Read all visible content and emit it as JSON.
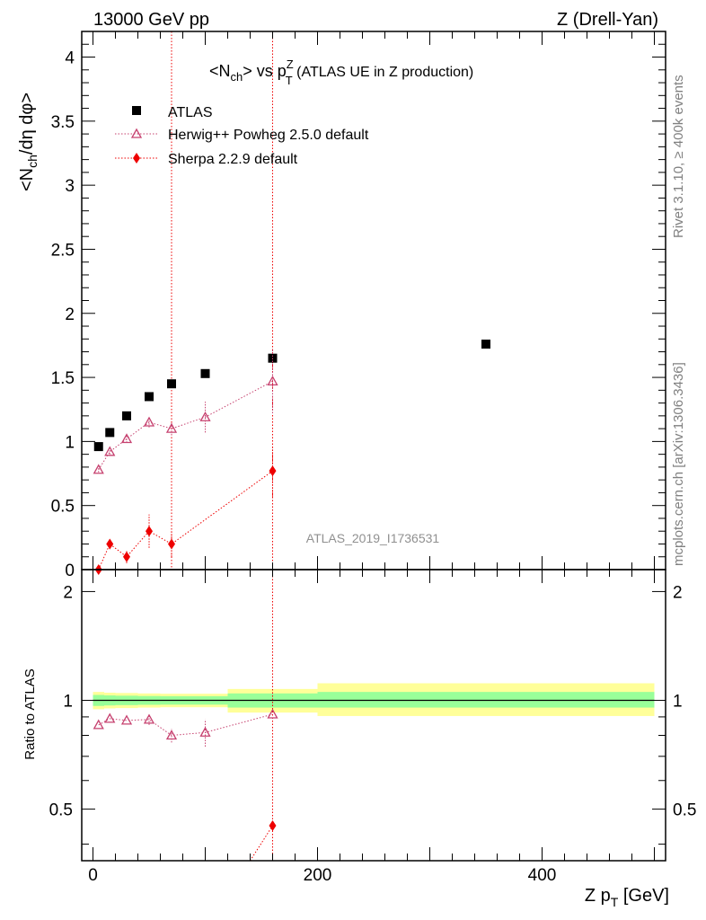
{
  "header": {
    "left": "13000 GeV pp",
    "right": "Z (Drell-Yan)"
  },
  "side_text": {
    "rivet": "Rivet 3.1.10, ≥ 400k events",
    "mcplots": "mcplots.cern.ch [arXiv:1306.3436]"
  },
  "chart_data": [
    {
      "type": "scatter",
      "title": {
        "part1": "<N",
        "part1_sub": "ch",
        "part2": "> vs p",
        "part2_sup": "Z",
        "part2_sub": "T",
        "part3": " (ATLAS UE in Z production)"
      },
      "ylabel": {
        "part1": "<N",
        "part1_sub": "ch",
        "part2": "/dη dφ>"
      },
      "watermark": "ATLAS_2019_I1736531",
      "xlim": [
        -10,
        510
      ],
      "ylim": [
        0,
        4.2
      ],
      "yticks": [
        0,
        0.5,
        1,
        1.5,
        2,
        2.5,
        3,
        3.5,
        4
      ],
      "ytick_labels": [
        "0",
        "0.5",
        "1",
        "1.5",
        "2",
        "2.5",
        "3",
        "3.5",
        "4"
      ],
      "legend_position": "top-left",
      "series": [
        {
          "name": "ATLAS",
          "marker": "square",
          "color": "#000000",
          "points": [
            {
              "x": 5,
              "y": 0.96,
              "xerr": 5
            },
            {
              "x": 15,
              "y": 1.07,
              "xerr": 5
            },
            {
              "x": 30,
              "y": 1.2,
              "xerr": 10
            },
            {
              "x": 50,
              "y": 1.35,
              "xerr": 10
            },
            {
              "x": 70,
              "y": 1.45,
              "xerr": 10
            },
            {
              "x": 100,
              "y": 1.53,
              "xerr": 20
            },
            {
              "x": 160,
              "y": 1.65,
              "xerr": 40
            },
            {
              "x": 350,
              "y": 1.76,
              "xerr": 150
            }
          ]
        },
        {
          "name": "Herwig++ Powheg 2.5.0 default",
          "marker": "triangle",
          "color": "#c6416f",
          "points": [
            {
              "x": 5,
              "y": 0.78,
              "yerr": 0.02
            },
            {
              "x": 15,
              "y": 0.92,
              "yerr": 0.02
            },
            {
              "x": 30,
              "y": 1.02,
              "yerr": 0.03
            },
            {
              "x": 50,
              "y": 1.15,
              "yerr": 0.04
            },
            {
              "x": 70,
              "y": 1.1,
              "yerr": 0.05
            },
            {
              "x": 100,
              "y": 1.19,
              "yerr": 0.12
            },
            {
              "x": 160,
              "y": 1.47,
              "yerr": 0.25
            }
          ]
        },
        {
          "name": "Sherpa 2.2.9 default",
          "marker": "diamond",
          "color": "#ee0000",
          "points": [
            {
              "x": 5,
              "y": 0.0,
              "yerr": 0.02
            },
            {
              "x": 15,
              "y": 0.2,
              "yerr": 0.04
            },
            {
              "x": 30,
              "y": 0.1,
              "yerr": 0.05
            },
            {
              "x": 50,
              "y": 0.3,
              "yerr": 0.13
            },
            {
              "x": 70,
              "y": 0.2,
              "yerr": 0.1
            },
            {
              "x": 160,
              "y": 0.77,
              "yerr": 0.2
            }
          ]
        }
      ],
      "vertical_lines": [
        {
          "x": 70,
          "color": "#ee0000"
        },
        {
          "x": 160,
          "color": "#ee0000"
        }
      ]
    },
    {
      "type": "scatter",
      "ylabel": "Ratio to ATLAS",
      "xlabel": {
        "part1": "Z p",
        "part1_sub": "T",
        "part2": " [GeV]"
      },
      "xlim": [
        -10,
        510
      ],
      "ylim": [
        0.36,
        2.3
      ],
      "log_y": true,
      "yticks": [
        0.5,
        1,
        2
      ],
      "ytick_labels": [
        "0.5",
        "1",
        "2"
      ],
      "xticks": [
        0,
        200,
        400
      ],
      "xtick_labels": [
        "0",
        "200",
        "400"
      ],
      "bands": [
        {
          "x0": 0,
          "x1": 10,
          "inner": [
            0.965,
            1.035
          ],
          "outer": [
            0.945,
            1.055
          ]
        },
        {
          "x0": 10,
          "x1": 20,
          "inner": [
            0.968,
            1.032
          ],
          "outer": [
            0.95,
            1.05
          ]
        },
        {
          "x0": 20,
          "x1": 40,
          "inner": [
            0.97,
            1.03
          ],
          "outer": [
            0.952,
            1.048
          ]
        },
        {
          "x0": 40,
          "x1": 60,
          "inner": [
            0.972,
            1.028
          ],
          "outer": [
            0.955,
            1.045
          ]
        },
        {
          "x0": 60,
          "x1": 80,
          "inner": [
            0.973,
            1.027
          ],
          "outer": [
            0.957,
            1.043
          ]
        },
        {
          "x0": 80,
          "x1": 120,
          "inner": [
            0.973,
            1.027
          ],
          "outer": [
            0.957,
            1.043
          ]
        },
        {
          "x0": 120,
          "x1": 200,
          "inner": [
            0.955,
            1.045
          ],
          "outer": [
            0.925,
            1.075
          ]
        },
        {
          "x0": 200,
          "x1": 500,
          "inner": [
            0.955,
            1.055
          ],
          "outer": [
            0.905,
            1.115
          ]
        }
      ],
      "series": [
        {
          "name": "Herwig++ Powheg 2.5.0 default",
          "marker": "triangle",
          "color": "#c6416f",
          "points": [
            {
              "x": 5,
              "y": 0.855
            },
            {
              "x": 15,
              "y": 0.89
            },
            {
              "x": 30,
              "y": 0.88
            },
            {
              "x": 50,
              "y": 0.885,
              "yerr": 0.03
            },
            {
              "x": 70,
              "y": 0.8,
              "yerr": 0.035
            },
            {
              "x": 100,
              "y": 0.815,
              "yerr": 0.07
            },
            {
              "x": 160,
              "y": 0.915
            }
          ]
        },
        {
          "name": "Sherpa 2.2.9 default",
          "marker": "diamond",
          "color": "#ee0000",
          "points": [
            {
              "x": 160,
              "y": 0.45
            }
          ]
        }
      ]
    }
  ]
}
